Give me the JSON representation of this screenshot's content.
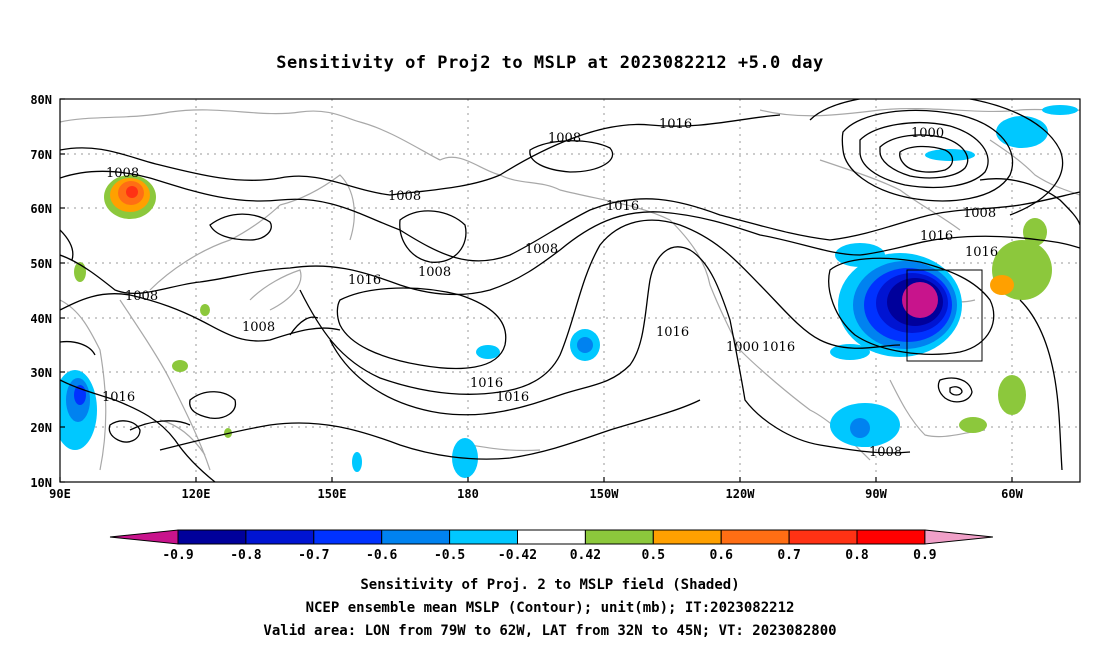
{
  "title": "Sensitivity of Proj2 to MSLP at 2023082212 +5.0 day",
  "lat_labels": [
    "80N",
    "70N",
    "60N",
    "50N",
    "40N",
    "30N",
    "20N",
    "10N"
  ],
  "lon_labels": [
    "90E",
    "120E",
    "150E",
    "180",
    "150W",
    "120W",
    "90W",
    "60W"
  ],
  "contour_labels": [
    "1008",
    "1016",
    "1000",
    "1008",
    "1016",
    "1008",
    "1016",
    "1016",
    "1008",
    "1008",
    "1008",
    "1016",
    "1008",
    "1008",
    "1016",
    "1016",
    "1016",
    "1016",
    "1000",
    "1016",
    "1008"
  ],
  "colorbar": {
    "labels": [
      "-0.9",
      "-0.8",
      "-0.7",
      "-0.6",
      "-0.5",
      "-0.42",
      "0.42",
      "0.5",
      "0.6",
      "0.7",
      "0.8",
      "0.9"
    ],
    "colors": [
      "#c8148c",
      "#00009b",
      "#0014d2",
      "#0032ff",
      "#0082f0",
      "#00c8ff",
      "#ffffff",
      "#8cc83c",
      "#ffa000",
      "#ff6e14",
      "#ff3214",
      "#ff0000",
      "#f0a0c8"
    ]
  },
  "caption": {
    "line1": "Sensitivity of Proj. 2 to MSLP field (Shaded)",
    "line2": "NCEP ensemble mean MSLP (Contour); unit(mb); IT:2023082212",
    "line3": "Valid area: LON from 79W to 62W, LAT from 32N to 45N; VT: 2023082800"
  }
}
